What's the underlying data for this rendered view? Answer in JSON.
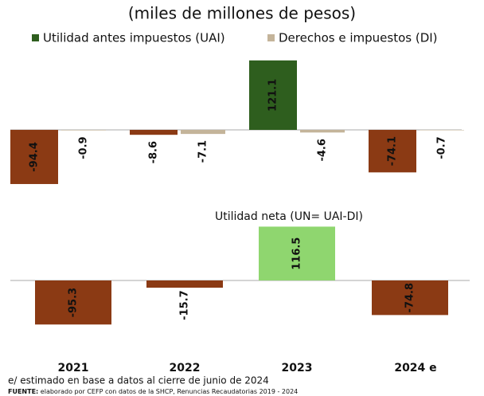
{
  "chart_data": [
    {
      "type": "bar",
      "title": "(miles de millones de pesos)",
      "categories": [
        "2021",
        "2022",
        "2023",
        "2024 e"
      ],
      "series": [
        {
          "name": "Utilidad antes impuestos (UAI)",
          "color": "#2e5e1e",
          "colors": [
            "#8b3a14",
            "#8b3a14",
            "#2e5e1e",
            "#8b3a14"
          ],
          "values": [
            -94.4,
            -8.6,
            121.1,
            -74.1
          ]
        },
        {
          "name": "Derechos e impuestos (DI)",
          "color": "#c4b49a",
          "values": [
            -0.9,
            -7.1,
            -4.6,
            -0.7
          ]
        }
      ]
    },
    {
      "type": "bar",
      "title": "Utilidad neta (UN= UAI-DI)",
      "colors": [
        "#8b3a14",
        "#8b3a14",
        "#8fd66f",
        "#8b3a14"
      ],
      "values": [
        -95.3,
        -15.7,
        116.5,
        -74.8
      ]
    }
  ],
  "notes": {
    "estimate": "e/ estimado en base a datos al cierre de junio de 2024",
    "source_label": "FUENTE:",
    "source": "elaborado por CEFP con datos de la SHCP, Renuncias Recaudatorias 2019 - 2024"
  }
}
